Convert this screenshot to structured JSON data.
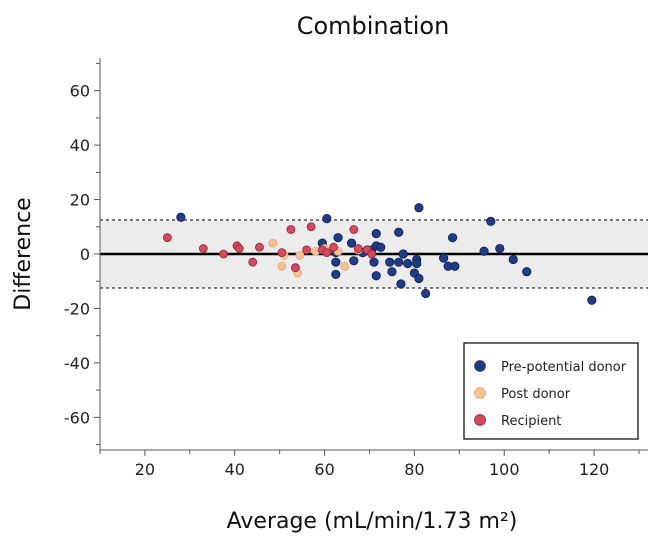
{
  "chart_data": {
    "type": "scatter",
    "title": "Combination",
    "xlabel": "Average (mL/min/1.73 m²)",
    "ylabel": "Difference",
    "xlim": [
      10,
      132
    ],
    "ylim": [
      -72,
      72
    ],
    "x_ticks": [
      20,
      40,
      60,
      80,
      100,
      120
    ],
    "y_ticks": [
      60,
      40,
      20,
      0,
      -20,
      -40,
      -60
    ],
    "grid": false,
    "legend_position": "bottom-right",
    "mean_line": 0,
    "limits_of_agreement": [
      12.5,
      -12.5
    ],
    "band": [
      -12.5,
      12.5
    ],
    "series": [
      {
        "name": "Pre-potential donor",
        "color": "#1f3c88",
        "points": [
          [
            28,
            13.5
          ],
          [
            60.5,
            13.0
          ],
          [
            59.5,
            4.0
          ],
          [
            62.5,
            0.5
          ],
          [
            62.5,
            -3.0
          ],
          [
            62.5,
            -7.5
          ],
          [
            63,
            6.0
          ],
          [
            66,
            4.0
          ],
          [
            66.5,
            -2.5
          ],
          [
            68.5,
            0.5
          ],
          [
            69.5,
            1.5
          ],
          [
            70.5,
            1.5
          ],
          [
            71,
            -3.0
          ],
          [
            71.5,
            7.5
          ],
          [
            71.5,
            3.0
          ],
          [
            71.5,
            -8.0
          ],
          [
            72.5,
            2.5
          ],
          [
            74.5,
            -3.0
          ],
          [
            75,
            -6.5
          ],
          [
            76.5,
            8.0
          ],
          [
            76.5,
            -3.0
          ],
          [
            77.5,
            0.0
          ],
          [
            77,
            -11.0
          ],
          [
            78.5,
            -3.5
          ],
          [
            80,
            -7.0
          ],
          [
            80.5,
            -2.0
          ],
          [
            80.5,
            -3.5
          ],
          [
            81,
            17.0
          ],
          [
            81,
            -9.0
          ],
          [
            82.5,
            -14.5
          ],
          [
            86.5,
            -1.5
          ],
          [
            87.5,
            -4.5
          ],
          [
            88.5,
            6.0
          ],
          [
            89,
            -4.5
          ],
          [
            95.5,
            1.0
          ],
          [
            97,
            12.0
          ],
          [
            99,
            2.0
          ],
          [
            102,
            -2.0
          ],
          [
            105,
            -6.5
          ],
          [
            119.5,
            -17.0
          ]
        ]
      },
      {
        "name": "Post donor",
        "color": "#f6c08f",
        "points": [
          [
            48.5,
            4.0
          ],
          [
            50.5,
            -4.5
          ],
          [
            51,
            -0.5
          ],
          [
            54,
            -7.0
          ],
          [
            54.5,
            -0.5
          ],
          [
            58,
            1.0
          ],
          [
            60,
            2.0
          ],
          [
            63,
            1.0
          ],
          [
            64.5,
            -4.5
          ],
          [
            67.5,
            1.5
          ]
        ]
      },
      {
        "name": "Recipient",
        "color": "#d9475b",
        "points": [
          [
            25,
            6.0
          ],
          [
            33,
            2.0
          ],
          [
            37.5,
            0.0
          ],
          [
            40.5,
            3.0
          ],
          [
            41,
            2.0
          ],
          [
            44,
            -3.0
          ],
          [
            45.5,
            2.5
          ],
          [
            50.5,
            0.5
          ],
          [
            52.5,
            9.0
          ],
          [
            53.5,
            -5.0
          ],
          [
            56,
            1.5
          ],
          [
            57,
            10.0
          ],
          [
            59.5,
            1.5
          ],
          [
            60.5,
            0.5
          ],
          [
            62,
            2.5
          ],
          [
            66.5,
            9.0
          ],
          [
            67.5,
            2.0
          ],
          [
            69.5,
            1.5
          ],
          [
            70.5,
            0.0
          ]
        ]
      }
    ]
  }
}
